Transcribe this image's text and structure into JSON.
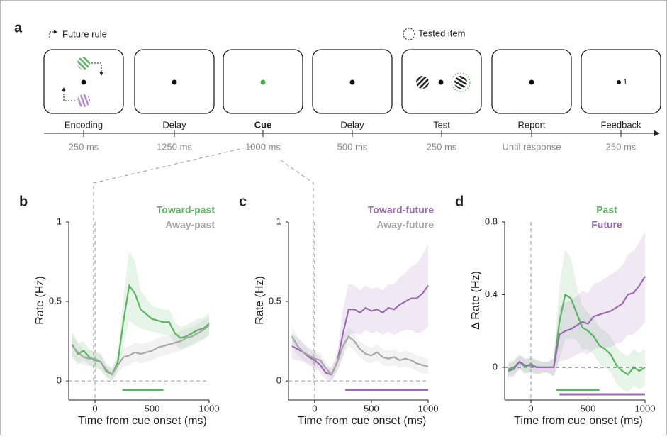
{
  "diagram": {
    "panel": "a",
    "future_rule": "Future rule",
    "tested_item": "Tested item",
    "feedback_value": "1",
    "stages": [
      {
        "label": "Encoding",
        "duration": "250 ms"
      },
      {
        "label": "Delay",
        "duration": "1250 ms"
      },
      {
        "label": "Cue",
        "duration": "1000 ms"
      },
      {
        "label": "Delay",
        "duration": "500 ms"
      },
      {
        "label": "Test",
        "duration": "250 ms"
      },
      {
        "label": "Report",
        "duration": "Until response"
      },
      {
        "label": "Feedback",
        "duration": "250 ms"
      }
    ]
  },
  "chart_data": [
    {
      "type": "line",
      "panel": "b",
      "xlabel": "Time from cue onset (ms)",
      "ylabel": "Rate (Hz)",
      "x": [
        -200,
        -150,
        -100,
        -50,
        0,
        50,
        100,
        150,
        200,
        250,
        300,
        350,
        400,
        450,
        500,
        550,
        600,
        650,
        700,
        750,
        800,
        850,
        900,
        950,
        1000
      ],
      "xlim": [
        -230,
        1000
      ],
      "ylim": [
        -0.12,
        1
      ],
      "xticks": [
        0,
        500,
        1000
      ],
      "yticks": [
        0,
        0.5,
        1
      ],
      "series": [
        {
          "name": "Toward-past",
          "color": "#5cb563",
          "values": [
            0.23,
            0.17,
            0.19,
            0.15,
            0.13,
            0.12,
            0.06,
            0.04,
            0.12,
            0.38,
            0.6,
            0.55,
            0.45,
            0.42,
            0.39,
            0.38,
            0.37,
            0.37,
            0.3,
            0.27,
            0.28,
            0.3,
            0.32,
            0.33,
            0.36
          ],
          "error": [
            0.08,
            0.07,
            0.06,
            0.05,
            0.05,
            0.05,
            0.04,
            0.04,
            0.06,
            0.15,
            0.22,
            0.2,
            0.12,
            0.1,
            0.08,
            0.08,
            0.08,
            0.08,
            0.07,
            0.07,
            0.07,
            0.07,
            0.07,
            0.07,
            0.07
          ],
          "sig": [
            240,
            600
          ]
        },
        {
          "name": "Away-past",
          "color": "#a8a8a8",
          "values": [
            0.22,
            0.18,
            0.15,
            0.14,
            0.14,
            0.12,
            0.07,
            0.04,
            0.1,
            0.15,
            0.16,
            0.18,
            0.17,
            0.18,
            0.19,
            0.21,
            0.22,
            0.23,
            0.24,
            0.25,
            0.27,
            0.28,
            0.3,
            0.32,
            0.35
          ],
          "error": [
            0.07,
            0.06,
            0.05,
            0.05,
            0.05,
            0.05,
            0.04,
            0.04,
            0.05,
            0.06,
            0.06,
            0.06,
            0.06,
            0.06,
            0.06,
            0.06,
            0.06,
            0.06,
            0.06,
            0.06,
            0.06,
            0.06,
            0.06,
            0.06,
            0.06
          ]
        }
      ]
    },
    {
      "type": "line",
      "panel": "c",
      "xlabel": "Time from cue onset (ms)",
      "ylabel": "Rate (Hz)",
      "x": [
        -200,
        -150,
        -100,
        -50,
        0,
        50,
        100,
        150,
        200,
        250,
        300,
        350,
        400,
        450,
        500,
        550,
        600,
        650,
        700,
        750,
        800,
        850,
        900,
        950,
        1000
      ],
      "xlim": [
        -230,
        1000
      ],
      "ylim": [
        -0.12,
        1
      ],
      "xticks": [
        0,
        500,
        1000
      ],
      "yticks": [
        0,
        0.5,
        1
      ],
      "series": [
        {
          "name": "Toward-future",
          "color": "#9b6bb5",
          "values": [
            0.22,
            0.2,
            0.18,
            0.15,
            0.13,
            0.1,
            0.05,
            0.04,
            0.12,
            0.3,
            0.45,
            0.45,
            0.43,
            0.46,
            0.44,
            0.45,
            0.43,
            0.46,
            0.45,
            0.48,
            0.5,
            0.52,
            0.52,
            0.55,
            0.6
          ],
          "error": [
            0.08,
            0.07,
            0.06,
            0.05,
            0.05,
            0.05,
            0.04,
            0.04,
            0.06,
            0.15,
            0.16,
            0.15,
            0.14,
            0.14,
            0.14,
            0.14,
            0.14,
            0.15,
            0.16,
            0.17,
            0.18,
            0.2,
            0.22,
            0.24,
            0.26
          ],
          "sig": [
            270,
            1000
          ]
        },
        {
          "name": "Away-future",
          "color": "#a8a8a8",
          "values": [
            0.28,
            0.22,
            0.18,
            0.16,
            0.14,
            0.13,
            0.08,
            0.04,
            0.12,
            0.22,
            0.28,
            0.25,
            0.2,
            0.17,
            0.16,
            0.18,
            0.15,
            0.14,
            0.15,
            0.13,
            0.14,
            0.13,
            0.11,
            0.1,
            0.09
          ],
          "error": [
            0.06,
            0.06,
            0.05,
            0.05,
            0.05,
            0.05,
            0.04,
            0.04,
            0.05,
            0.06,
            0.06,
            0.06,
            0.05,
            0.05,
            0.05,
            0.05,
            0.05,
            0.05,
            0.05,
            0.05,
            0.05,
            0.05,
            0.05,
            0.05,
            0.05
          ]
        }
      ]
    },
    {
      "type": "line",
      "panel": "d",
      "xlabel": "Time from cue onset (ms)",
      "ylabel": "Δ Rate (Hz)",
      "x": [
        -200,
        -150,
        -100,
        -50,
        0,
        50,
        100,
        150,
        200,
        250,
        300,
        350,
        400,
        450,
        500,
        550,
        600,
        650,
        700,
        750,
        800,
        850,
        900,
        950,
        1000
      ],
      "xlim": [
        -230,
        1000
      ],
      "ylim": [
        -0.18,
        0.8
      ],
      "xticks": [
        0,
        500,
        1000
      ],
      "yticks": [
        0,
        0.4,
        0.8
      ],
      "series": [
        {
          "name": "Past",
          "color": "#5cb563",
          "values": [
            -0.01,
            0,
            0.03,
            0,
            0.02,
            0,
            0,
            0,
            0,
            0.25,
            0.4,
            0.38,
            0.3,
            0.22,
            0.2,
            0.17,
            0.12,
            0.1,
            0.07,
            0.01,
            -0.02,
            -0.04,
            0,
            -0.02,
            0
          ],
          "error": [
            0.04,
            0.04,
            0.04,
            0.04,
            0.04,
            0.04,
            0.03,
            0.03,
            0.05,
            0.2,
            0.25,
            0.22,
            0.15,
            0.12,
            0.1,
            0.1,
            0.1,
            0.1,
            0.1,
            0.1,
            0.1,
            0.1,
            0.1,
            0.1,
            0.1
          ],
          "sig": [
            220,
            600
          ]
        },
        {
          "name": "Future",
          "color": "#9b6bb5",
          "values": [
            -0.02,
            -0.01,
            0.03,
            0.01,
            0.01,
            0,
            0,
            0,
            0,
            0.18,
            0.2,
            0.21,
            0.23,
            0.25,
            0.24,
            0.28,
            0.29,
            0.3,
            0.31,
            0.33,
            0.35,
            0.4,
            0.41,
            0.45,
            0.5
          ],
          "error": [
            0.04,
            0.04,
            0.04,
            0.04,
            0.04,
            0.04,
            0.03,
            0.03,
            0.05,
            0.15,
            0.16,
            0.16,
            0.16,
            0.17,
            0.17,
            0.18,
            0.18,
            0.19,
            0.2,
            0.2,
            0.21,
            0.22,
            0.23,
            0.24,
            0.25
          ],
          "sig": [
            250,
            1000
          ]
        }
      ]
    }
  ]
}
